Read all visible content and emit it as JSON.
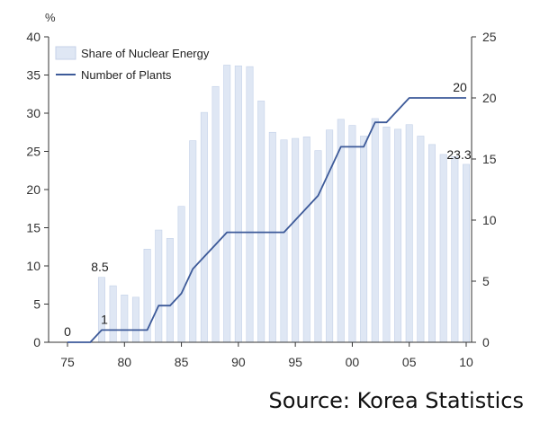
{
  "chart_data": {
    "type": "bar+line",
    "left_axis": {
      "unit": "%",
      "ylim": [
        0,
        40
      ],
      "ticks": [
        0,
        5,
        10,
        15,
        20,
        25,
        30,
        35,
        40
      ]
    },
    "right_axis": {
      "ylim": [
        0,
        25
      ],
      "ticks": [
        0,
        5,
        10,
        15,
        20,
        25
      ]
    },
    "x_axis": {
      "year_range": [
        1975,
        2010
      ],
      "ticks": [
        {
          "year": 1975,
          "label": "75"
        },
        {
          "year": 1980,
          "label": "80"
        },
        {
          "year": 1985,
          "label": "85"
        },
        {
          "year": 1990,
          "label": "90"
        },
        {
          "year": 1995,
          "label": "95"
        },
        {
          "year": 2000,
          "label": "00"
        },
        {
          "year": 2005,
          "label": "05"
        },
        {
          "year": 2010,
          "label": "10"
        }
      ]
    },
    "legend": {
      "placement": "top-left",
      "entries": [
        "Share of Nuclear Energy",
        "Number of Plants"
      ]
    },
    "colors": {
      "bar_fill": "#dfe7f4",
      "bar_stroke": "#c4d1e8",
      "line": "#3d5a99",
      "axis": "#333333"
    },
    "bars": {
      "name": "Share of Nuclear Energy",
      "years": [
        1978,
        1979,
        1980,
        1981,
        1982,
        1983,
        1984,
        1985,
        1986,
        1987,
        1988,
        1989,
        1990,
        1991,
        1992,
        1993,
        1994,
        1995,
        1996,
        1997,
        1998,
        1999,
        2000,
        2001,
        2002,
        2003,
        2004,
        2005,
        2006,
        2007,
        2008,
        2009,
        2010
      ],
      "values": [
        8.5,
        7.4,
        6.2,
        5.9,
        12.2,
        14.7,
        13.6,
        17.8,
        26.4,
        30.1,
        33.5,
        36.3,
        36.2,
        36.1,
        31.6,
        27.5,
        26.5,
        26.7,
        26.9,
        25.1,
        27.8,
        29.2,
        28.4,
        27.0,
        29.3,
        28.2,
        27.9,
        28.5,
        27.0,
        25.9,
        24.6,
        24.3,
        23.3
      ]
    },
    "line": {
      "name": "Number of Plants",
      "points": [
        [
          1975,
          0
        ],
        [
          1977,
          0
        ],
        [
          1978,
          1
        ],
        [
          1979,
          1
        ],
        [
          1980,
          1
        ],
        [
          1981,
          1
        ],
        [
          1982,
          1
        ],
        [
          1983,
          3
        ],
        [
          1984,
          3
        ],
        [
          1985,
          4
        ],
        [
          1986,
          6
        ],
        [
          1987,
          7
        ],
        [
          1988,
          8
        ],
        [
          1989,
          9
        ],
        [
          1990,
          9
        ],
        [
          1991,
          9
        ],
        [
          1992,
          9
        ],
        [
          1993,
          9
        ],
        [
          1994,
          9
        ],
        [
          1995,
          10
        ],
        [
          1996,
          11
        ],
        [
          1997,
          12
        ],
        [
          1998,
          14
        ],
        [
          1999,
          16
        ],
        [
          2000,
          16
        ],
        [
          2001,
          16
        ],
        [
          2002,
          18
        ],
        [
          2003,
          18
        ],
        [
          2004,
          19
        ],
        [
          2005,
          20
        ],
        [
          2006,
          20
        ],
        [
          2007,
          20
        ],
        [
          2008,
          20
        ],
        [
          2009,
          20
        ],
        [
          2010,
          20
        ]
      ]
    },
    "data_labels": [
      {
        "text": "0",
        "series": "line",
        "year": 1975,
        "value": 0
      },
      {
        "text": "1",
        "series": "line",
        "year": 1978,
        "value": 1
      },
      {
        "text": "8.5",
        "series": "bars",
        "year": 1978,
        "value": 8.5
      },
      {
        "text": "23.3",
        "series": "bars",
        "year": 2010,
        "value": 23.3
      },
      {
        "text": "20",
        "series": "line",
        "year": 2010,
        "value": 20
      }
    ]
  },
  "source_text": "Source: Korea Statistics"
}
